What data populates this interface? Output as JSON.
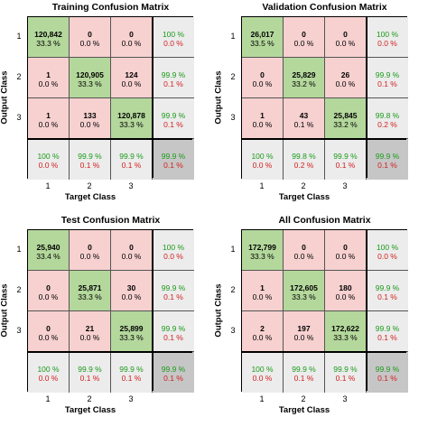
{
  "colors": {
    "correct": "#b4d89c",
    "incorrect": "#f7d0d0",
    "summary": "#ececec",
    "overall": "#c6c6c6",
    "green_text": "#1a9a1a",
    "red_text": "#d42020"
  },
  "chart_data": [
    {
      "type": "table",
      "title": "Training Confusion Matrix",
      "xlabel": "Target Class",
      "ylabel": "Output Class",
      "x_ticks": [
        "1",
        "2",
        "3"
      ],
      "y_ticks": [
        "1",
        "2",
        "3"
      ],
      "cells": [
        [
          {
            "count": "120,842",
            "pct": "33.3 %"
          },
          {
            "count": "0",
            "pct": "0.0 %"
          },
          {
            "count": "0",
            "pct": "0.0 %"
          }
        ],
        [
          {
            "count": "1",
            "pct": "0.0 %"
          },
          {
            "count": "120,905",
            "pct": "33.3 %"
          },
          {
            "count": "124",
            "pct": "0.0 %"
          }
        ],
        [
          {
            "count": "1",
            "pct": "0.0 %"
          },
          {
            "count": "133",
            "pct": "0.0 %"
          },
          {
            "count": "120,878",
            "pct": "33.3 %"
          }
        ]
      ],
      "row_summary": [
        [
          "100 %",
          "0.0 %"
        ],
        [
          "99.9 %",
          "0.1 %"
        ],
        [
          "99.9 %",
          "0.1 %"
        ]
      ],
      "col_summary": [
        [
          "100 %",
          "0.0 %"
        ],
        [
          "99.9 %",
          "0.1 %"
        ],
        [
          "99.9 %",
          "0.1 %"
        ]
      ],
      "overall": [
        "99.9 %",
        "0.1 %"
      ]
    },
    {
      "type": "table",
      "title": "Validation Confusion Matrix",
      "xlabel": "Target Class",
      "ylabel": "Output Class",
      "x_ticks": [
        "1",
        "2",
        "3"
      ],
      "y_ticks": [
        "1",
        "2",
        "3"
      ],
      "cells": [
        [
          {
            "count": "26,017",
            "pct": "33.5 %"
          },
          {
            "count": "0",
            "pct": "0.0 %"
          },
          {
            "count": "0",
            "pct": "0.0 %"
          }
        ],
        [
          {
            "count": "0",
            "pct": "0.0 %"
          },
          {
            "count": "25,829",
            "pct": "33.2 %"
          },
          {
            "count": "26",
            "pct": "0.0 %"
          }
        ],
        [
          {
            "count": "1",
            "pct": "0.0 %"
          },
          {
            "count": "43",
            "pct": "0.1 %"
          },
          {
            "count": "25,845",
            "pct": "33.2 %"
          }
        ]
      ],
      "row_summary": [
        [
          "100 %",
          "0.0 %"
        ],
        [
          "99.9 %",
          "0.1 %"
        ],
        [
          "99.8 %",
          "0.2 %"
        ]
      ],
      "col_summary": [
        [
          "100 %",
          "0.0 %"
        ],
        [
          "99.8 %",
          "0.2 %"
        ],
        [
          "99.9 %",
          "0.1 %"
        ]
      ],
      "overall": [
        "99.9 %",
        "0.1 %"
      ]
    },
    {
      "type": "table",
      "title": "Test Confusion Matrix",
      "xlabel": "Target Class",
      "ylabel": "Output Class",
      "x_ticks": [
        "1",
        "2",
        "3"
      ],
      "y_ticks": [
        "1",
        "2",
        "3"
      ],
      "cells": [
        [
          {
            "count": "25,940",
            "pct": "33.4 %"
          },
          {
            "count": "0",
            "pct": "0.0 %"
          },
          {
            "count": "0",
            "pct": "0.0 %"
          }
        ],
        [
          {
            "count": "0",
            "pct": "0.0 %"
          },
          {
            "count": "25,871",
            "pct": "33.3 %"
          },
          {
            "count": "30",
            "pct": "0.0 %"
          }
        ],
        [
          {
            "count": "0",
            "pct": "0.0 %"
          },
          {
            "count": "21",
            "pct": "0.0 %"
          },
          {
            "count": "25,899",
            "pct": "33.3 %"
          }
        ]
      ],
      "row_summary": [
        [
          "100 %",
          "0.0 %"
        ],
        [
          "99.9 %",
          "0.1 %"
        ],
        [
          "99.9 %",
          "0.1 %"
        ]
      ],
      "col_summary": [
        [
          "100 %",
          "0.0 %"
        ],
        [
          "99.9 %",
          "0.1 %"
        ],
        [
          "99.9 %",
          "0.1 %"
        ]
      ],
      "overall": [
        "99.9 %",
        "0.1 %"
      ]
    },
    {
      "type": "table",
      "title": "All Confusion Matrix",
      "xlabel": "Target Class",
      "ylabel": "Output Class",
      "x_ticks": [
        "1",
        "2",
        "3"
      ],
      "y_ticks": [
        "1",
        "2",
        "3"
      ],
      "cells": [
        [
          {
            "count": "172,799",
            "pct": "33.3 %"
          },
          {
            "count": "0",
            "pct": "0.0 %"
          },
          {
            "count": "0",
            "pct": "0.0 %"
          }
        ],
        [
          {
            "count": "1",
            "pct": "0.0 %"
          },
          {
            "count": "172,605",
            "pct": "33.3 %"
          },
          {
            "count": "180",
            "pct": "0.0 %"
          }
        ],
        [
          {
            "count": "2",
            "pct": "0.0 %"
          },
          {
            "count": "197",
            "pct": "0.0 %"
          },
          {
            "count": "172,622",
            "pct": "33.3 %"
          }
        ]
      ],
      "row_summary": [
        [
          "100 %",
          "0.0 %"
        ],
        [
          "99.9 %",
          "0.1 %"
        ],
        [
          "99.9 %",
          "0.1 %"
        ]
      ],
      "col_summary": [
        [
          "100 %",
          "0.0 %"
        ],
        [
          "99.9 %",
          "0.1 %"
        ],
        [
          "99.9 %",
          "0.1 %"
        ]
      ],
      "overall": [
        "99.9 %",
        "0.1 %"
      ]
    }
  ]
}
